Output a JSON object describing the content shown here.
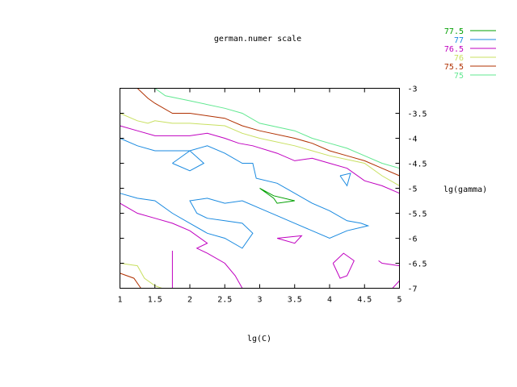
{
  "chart_data": {
    "type": "contour",
    "title": "german.numer scale",
    "xlabel": "lg(C)",
    "ylabel": "lg(gamma)",
    "xlim": [
      1,
      5
    ],
    "ylim": [
      -7,
      -3
    ],
    "x_ticks": [
      1,
      1.5,
      2,
      2.5,
      3,
      3.5,
      4,
      4.5,
      5
    ],
    "x_tick_labels": [
      "1",
      "1.5",
      "2",
      "2.5",
      "3",
      "3.5",
      "4",
      "4.5",
      "5"
    ],
    "y_ticks": [
      -3,
      -3.5,
      -4,
      -4.5,
      -5,
      -5.5,
      -6,
      -6.5,
      -7
    ],
    "y_tick_labels": [
      "-3",
      "-3.5",
      "-4",
      "-4.5",
      "-5",
      "-5.5",
      "-6",
      "-6.5",
      "-7"
    ],
    "legend_position": "top-right",
    "series": [
      {
        "name": "77.5",
        "color": "#00a000",
        "paths": [
          [
            [
              3.0,
              -5.0
            ],
            [
              3.2,
              -5.2
            ],
            [
              3.25,
              -5.3
            ],
            [
              3.5,
              -5.25
            ],
            [
              3.2,
              -5.15
            ],
            [
              3.0,
              -5.0
            ]
          ]
        ]
      },
      {
        "name": "77",
        "color": "#1a8ae0",
        "paths": [
          [
            [
              1.0,
              -4.0
            ],
            [
              1.25,
              -4.15
            ],
            [
              1.5,
              -4.25
            ],
            [
              2.0,
              -4.25
            ],
            [
              2.25,
              -4.15
            ],
            [
              2.5,
              -4.3
            ],
            [
              2.75,
              -4.5
            ],
            [
              2.9,
              -4.5
            ],
            [
              2.95,
              -4.8
            ],
            [
              3.25,
              -4.9
            ],
            [
              3.5,
              -5.1
            ],
            [
              3.75,
              -5.3
            ],
            [
              4.0,
              -5.45
            ],
            [
              4.25,
              -5.65
            ],
            [
              4.45,
              -5.7
            ],
            [
              4.55,
              -5.75
            ],
            [
              4.25,
              -5.85
            ],
            [
              4.0,
              -6.0
            ],
            [
              3.75,
              -5.85
            ],
            [
              3.5,
              -5.7
            ],
            [
              3.25,
              -5.55
            ],
            [
              3.0,
              -5.4
            ],
            [
              2.75,
              -5.25
            ],
            [
              2.5,
              -5.3
            ],
            [
              2.25,
              -5.2
            ],
            [
              2.0,
              -5.25
            ],
            [
              2.1,
              -5.5
            ],
            [
              2.25,
              -5.6
            ],
            [
              2.5,
              -5.65
            ],
            [
              2.75,
              -5.7
            ],
            [
              2.9,
              -5.9
            ],
            [
              2.75,
              -6.2
            ],
            [
              2.5,
              -6.0
            ],
            [
              2.25,
              -5.9
            ],
            [
              2.0,
              -5.7
            ],
            [
              1.75,
              -5.5
            ],
            [
              1.5,
              -5.25
            ],
            [
              1.25,
              -5.2
            ],
            [
              1.0,
              -5.1
            ]
          ],
          [
            [
              1.75,
              -4.5
            ],
            [
              2.0,
              -4.65
            ],
            [
              2.2,
              -4.5
            ],
            [
              2.0,
              -4.25
            ],
            [
              1.75,
              -4.5
            ]
          ],
          [
            [
              4.15,
              -4.75
            ],
            [
              4.25,
              -4.95
            ],
            [
              4.3,
              -4.7
            ],
            [
              4.15,
              -4.75
            ]
          ]
        ]
      },
      {
        "name": "76.5",
        "color": "#c000c0",
        "paths": [
          [
            [
              1.0,
              -3.75
            ],
            [
              1.25,
              -3.85
            ],
            [
              1.5,
              -3.95
            ],
            [
              2.0,
              -3.95
            ],
            [
              2.25,
              -3.9
            ],
            [
              2.5,
              -4.0
            ],
            [
              2.7,
              -4.1
            ],
            [
              2.9,
              -4.15
            ],
            [
              3.25,
              -4.3
            ],
            [
              3.5,
              -4.45
            ],
            [
              3.75,
              -4.4
            ],
            [
              4.0,
              -4.5
            ],
            [
              4.25,
              -4.6
            ],
            [
              4.5,
              -4.85
            ],
            [
              4.75,
              -4.95
            ],
            [
              5.0,
              -5.1
            ]
          ],
          [
            [
              1.0,
              -5.3
            ],
            [
              1.25,
              -5.5
            ],
            [
              1.5,
              -5.6
            ],
            [
              1.75,
              -5.7
            ],
            [
              2.0,
              -5.85
            ],
            [
              2.25,
              -6.1
            ],
            [
              2.1,
              -6.2
            ],
            [
              2.25,
              -6.3
            ],
            [
              2.5,
              -6.5
            ],
            [
              2.65,
              -6.75
            ],
            [
              2.75,
              -7.0
            ]
          ],
          [
            [
              1.75,
              -6.25
            ],
            [
              1.75,
              -7.0
            ]
          ],
          [
            [
              3.25,
              -6.0
            ],
            [
              3.5,
              -6.1
            ],
            [
              3.6,
              -5.95
            ],
            [
              3.25,
              -6.0
            ]
          ],
          [
            [
              4.05,
              -6.5
            ],
            [
              4.2,
              -6.3
            ],
            [
              4.35,
              -6.45
            ],
            [
              4.25,
              -6.75
            ],
            [
              4.15,
              -6.8
            ],
            [
              4.05,
              -6.5
            ]
          ],
          [
            [
              4.7,
              -6.45
            ],
            [
              4.75,
              -6.5
            ],
            [
              5.0,
              -6.55
            ]
          ],
          [
            [
              4.9,
              -7.0
            ],
            [
              5.0,
              -6.85
            ]
          ]
        ]
      },
      {
        "name": "76",
        "color": "#c8e060",
        "paths": [
          [
            [
              1.0,
              -3.5
            ],
            [
              1.25,
              -3.65
            ],
            [
              1.4,
              -3.7
            ],
            [
              1.5,
              -3.65
            ],
            [
              1.75,
              -3.7
            ],
            [
              2.0,
              -3.7
            ],
            [
              2.5,
              -3.75
            ],
            [
              2.75,
              -3.9
            ],
            [
              3.0,
              -4.0
            ],
            [
              3.5,
              -4.15
            ],
            [
              3.75,
              -4.25
            ],
            [
              4.0,
              -4.35
            ],
            [
              4.5,
              -4.5
            ],
            [
              4.75,
              -4.75
            ],
            [
              5.0,
              -4.95
            ]
          ],
          [
            [
              1.0,
              -6.5
            ],
            [
              1.25,
              -6.55
            ],
            [
              1.35,
              -6.8
            ],
            [
              1.5,
              -6.95
            ],
            [
              1.6,
              -7.0
            ]
          ]
        ]
      },
      {
        "name": "75.5",
        "color": "#b03000",
        "paths": [
          [
            [
              1.25,
              -3.0
            ],
            [
              1.4,
              -3.2
            ],
            [
              1.5,
              -3.3
            ],
            [
              1.75,
              -3.5
            ],
            [
              2.0,
              -3.5
            ],
            [
              2.25,
              -3.55
            ],
            [
              2.5,
              -3.6
            ],
            [
              2.75,
              -3.75
            ],
            [
              3.0,
              -3.85
            ],
            [
              3.5,
              -4.0
            ],
            [
              3.75,
              -4.1
            ],
            [
              4.0,
              -4.25
            ],
            [
              4.25,
              -4.35
            ],
            [
              4.5,
              -4.45
            ],
            [
              4.75,
              -4.6
            ],
            [
              5.0,
              -4.75
            ]
          ],
          [
            [
              1.0,
              -6.7
            ],
            [
              1.2,
              -6.8
            ],
            [
              1.3,
              -7.0
            ]
          ]
        ]
      },
      {
        "name": "75",
        "color": "#60e890",
        "paths": [
          [
            [
              1.5,
              -3.0
            ],
            [
              1.65,
              -3.15
            ],
            [
              2.0,
              -3.25
            ],
            [
              2.5,
              -3.4
            ],
            [
              2.75,
              -3.5
            ],
            [
              3.0,
              -3.7
            ],
            [
              3.5,
              -3.85
            ],
            [
              3.75,
              -4.0
            ],
            [
              4.0,
              -4.1
            ],
            [
              4.25,
              -4.2
            ],
            [
              4.5,
              -4.35
            ],
            [
              4.75,
              -4.5
            ],
            [
              5.0,
              -4.6
            ]
          ]
        ]
      }
    ]
  }
}
